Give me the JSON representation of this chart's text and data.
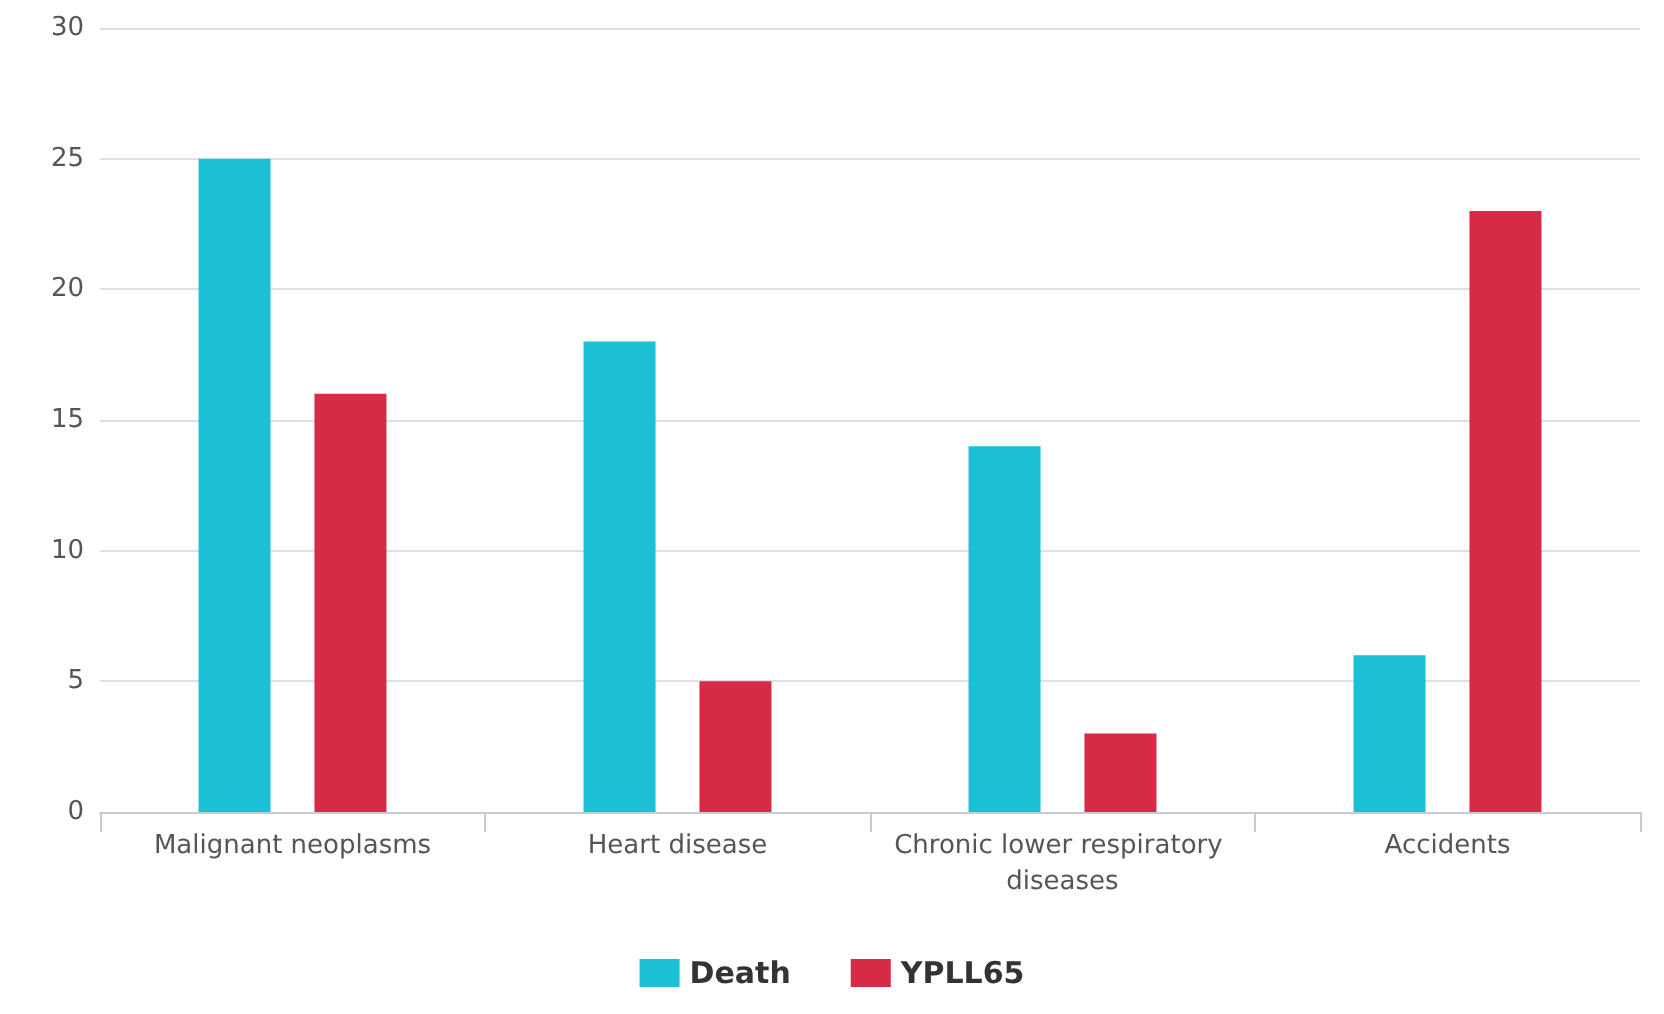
{
  "chart_data": {
    "type": "bar",
    "categories": [
      "Malignant neoplasms",
      "Heart disease",
      "Chronic lower respiratory diseases",
      "Accidents"
    ],
    "series": [
      {
        "name": "Death",
        "color": "#1bbfd6",
        "values": [
          25,
          18,
          14,
          6
        ]
      },
      {
        "name": "YPLL65",
        "color": "#d62a46",
        "values": [
          16,
          5,
          3,
          23
        ]
      }
    ],
    "ylim": [
      0,
      30
    ],
    "yticks": [
      0,
      5,
      10,
      15,
      20,
      25,
      30
    ],
    "grid": "y",
    "legend": "bottom"
  }
}
